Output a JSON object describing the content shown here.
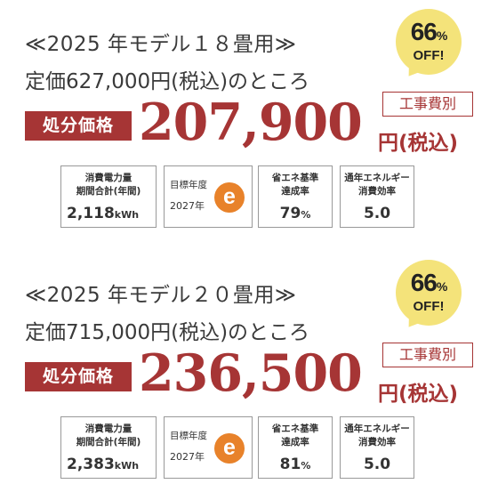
{
  "listings": [
    {
      "model": "≪2025 年モデル１８畳用≫",
      "list_price": "定価627,000円(税込)のところ",
      "discount": {
        "number": "66",
        "pct": "%",
        "off": "OFF!"
      },
      "construction_note": "工事費別",
      "sale_label": "処分価格",
      "price": "207,900",
      "price_unit": "円(税込)",
      "specs": {
        "energy_caption_1": "消費電力量",
        "energy_caption_2": "期間合計(年間)",
        "energy_value": "2,118",
        "energy_unit": "kWh",
        "target_year_caption": "目標年度",
        "target_year": "2027年",
        "e_mark": "e",
        "achievement_caption_1": "省エネ基準",
        "achievement_caption_2": "達成率",
        "achievement_value": "79",
        "achievement_unit": "%",
        "efficiency_caption_1": "通年エネルギー",
        "efficiency_caption_2": "消費効率",
        "efficiency_value": "5.0"
      }
    },
    {
      "model": "≪2025 年モデル２０畳用≫",
      "list_price": "定価715,000円(税込)のところ",
      "discount": {
        "number": "66",
        "pct": "%",
        "off": "OFF!"
      },
      "construction_note": "工事費別",
      "sale_label": "処分価格",
      "price": "236,500",
      "price_unit": "円(税込)",
      "specs": {
        "energy_caption_1": "消費電力量",
        "energy_caption_2": "期間合計(年間)",
        "energy_value": "2,383",
        "energy_unit": "kWh",
        "target_year_caption": "目標年度",
        "target_year": "2027年",
        "e_mark": "e",
        "achievement_caption_1": "省エネ基準",
        "achievement_caption_2": "達成率",
        "achievement_value": "81",
        "achievement_unit": "%",
        "efficiency_caption_1": "通年エネルギー",
        "efficiency_caption_2": "消費効率",
        "efficiency_value": "5.0"
      }
    }
  ],
  "colors": {
    "accent": "#a63535",
    "badge": "#f4e37a",
    "e_mark": "#e8822a"
  }
}
